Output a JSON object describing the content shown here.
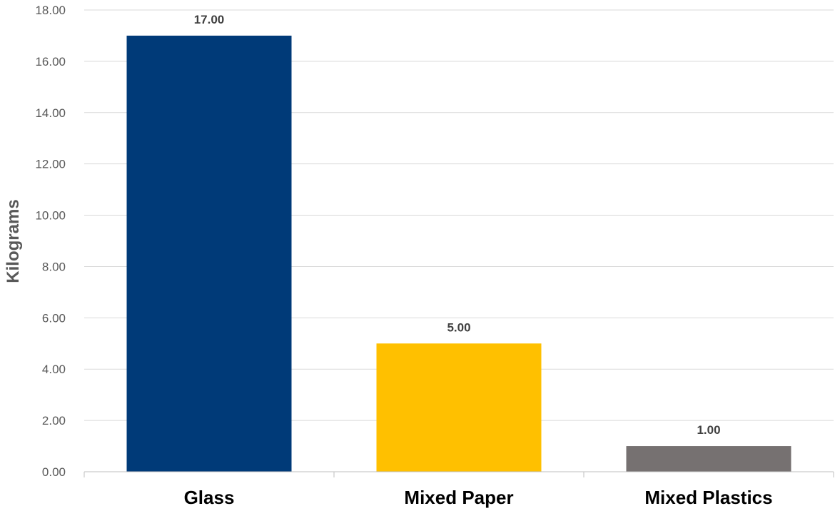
{
  "chart_data": {
    "type": "bar",
    "categories": [
      "Glass",
      "Mixed Paper",
      "Mixed Plastics"
    ],
    "values": [
      17.0,
      5.0,
      1.0
    ],
    "data_labels": [
      "17.00",
      "5.00",
      "1.00"
    ],
    "colors": [
      "#003A78",
      "#FFC000",
      "#767171"
    ],
    "xlabel": "",
    "ylabel": "Kilograms",
    "ylim": [
      0,
      18
    ],
    "yticks": [
      "0.00",
      "2.00",
      "4.00",
      "6.00",
      "8.00",
      "10.00",
      "12.00",
      "14.00",
      "16.00",
      "18.00"
    ],
    "grid": true,
    "legend": "none"
  }
}
